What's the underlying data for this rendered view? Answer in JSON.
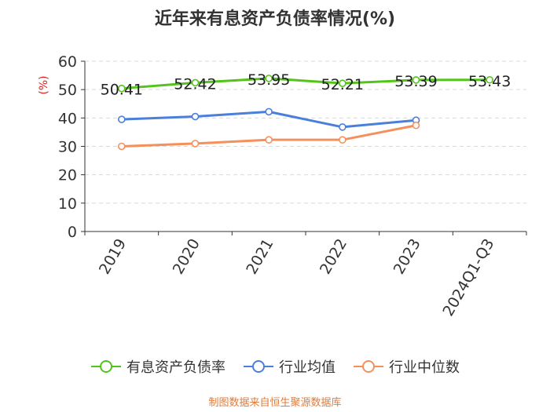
{
  "chart_data": {
    "type": "line",
    "title": "近年来有息资产负债率情况(%)",
    "ylabel": "(%)",
    "xlabel": "",
    "categories": [
      "2019",
      "2020",
      "2021",
      "2022",
      "2023",
      "2024Q1-Q3"
    ],
    "ylim": [
      0,
      60
    ],
    "yticks": [
      0,
      10,
      20,
      30,
      40,
      50,
      60
    ],
    "grid": true,
    "legend_position": "bottom",
    "series": [
      {
        "name": "有息资产负债率",
        "color": "#52c41a",
        "values": [
          50.41,
          52.42,
          53.95,
          52.21,
          53.39,
          53.43
        ],
        "labels": [
          "50.41",
          "52.42",
          "53.95",
          "52.21",
          "53.39",
          "53.43"
        ]
      },
      {
        "name": "行业均值",
        "color": "#4a7fdb",
        "values": [
          39.5,
          40.5,
          42.2,
          36.8,
          39.2,
          null
        ]
      },
      {
        "name": "行业中位数",
        "color": "#f5905a",
        "values": [
          30.0,
          31.0,
          32.3,
          32.3,
          37.4,
          null
        ]
      }
    ]
  },
  "source_note": "制图数据来自恒生聚源数据库"
}
